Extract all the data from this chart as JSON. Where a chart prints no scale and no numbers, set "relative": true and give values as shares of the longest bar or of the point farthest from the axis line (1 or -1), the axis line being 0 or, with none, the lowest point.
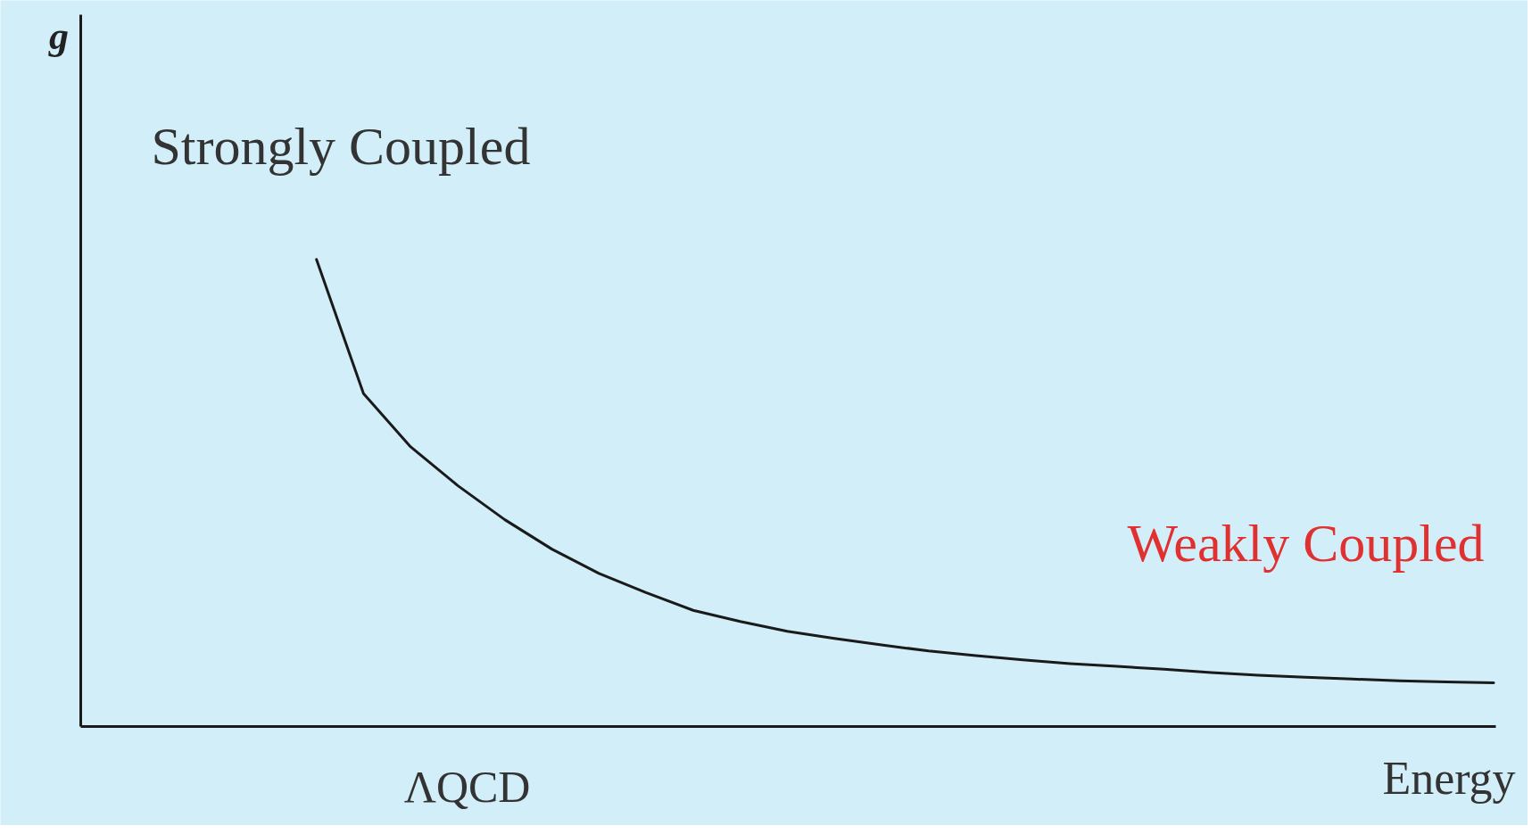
{
  "chart_data": {
    "type": "line",
    "relative": true,
    "xlabel": "Energy",
    "categories": [
      null,
      null,
      null,
      null,
      null,
      null,
      null,
      null,
      null,
      null,
      null,
      null,
      null,
      null,
      null,
      null,
      null,
      null,
      null,
      null,
      null,
      null,
      null,
      null,
      null,
      null,
      null,
      null,
      null,
      null,
      null
    ],
    "series": [
      {
        "color": "#1a1a1a",
        "values": [
          null,
          null,
          null,
          null,
          null,
          1,
          0.713,
          0.599,
          0.516,
          0.443,
          0.38,
          0.328,
          0.287,
          0.249,
          0.225,
          0.204,
          0.189,
          0.175,
          0.162,
          0.152,
          0.143,
          0.135,
          0.129,
          0.123,
          0.116,
          0.11,
          0.106,
          0.102,
          0.098,
          0.096,
          0.094
        ]
      }
    ],
    "annotations": [
      "Strongly Coupled",
      "Weakly Coupled",
      "ΛQCD",
      "g"
    ]
  }
}
